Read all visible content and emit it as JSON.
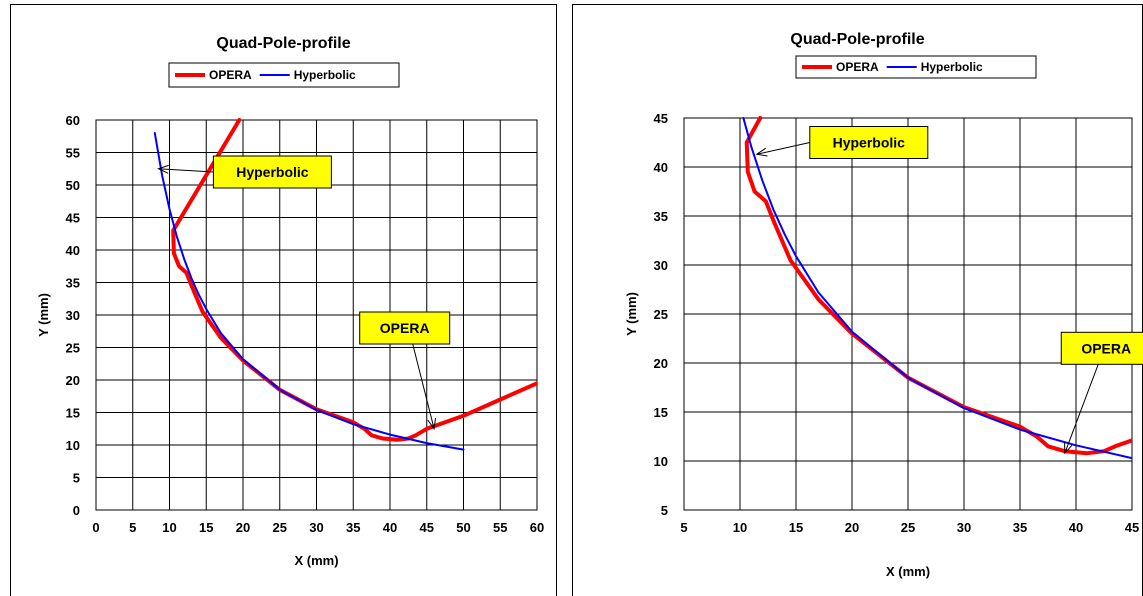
{
  "chart_data": [
    {
      "type": "line",
      "title": "Quad-Pole-profile",
      "xlabel": "X (mm)",
      "ylabel": "Y (mm)",
      "xlim": [
        0,
        60
      ],
      "ylim": [
        0,
        60
      ],
      "xticks": [
        0,
        5,
        10,
        15,
        20,
        25,
        30,
        35,
        40,
        45,
        50,
        55,
        60
      ],
      "yticks": [
        0,
        5,
        10,
        15,
        20,
        25,
        30,
        35,
        40,
        45,
        50,
        55,
        60
      ],
      "grid": true,
      "legend": "top-center",
      "series": [
        {
          "name": "OPERA",
          "color": "#ff0000",
          "x": [
            19.5,
            10.5,
            10.6,
            11.3,
            12.3,
            13.0,
            14.5,
            17,
            20,
            25,
            30,
            35,
            36.5,
            37.5,
            39,
            41,
            42.5,
            43.5,
            45,
            50,
            55,
            60
          ],
          "y": [
            60,
            43.0,
            39.5,
            37.5,
            36.5,
            34.5,
            30.5,
            26.5,
            23.0,
            18.5,
            15.5,
            13.5,
            12.5,
            11.5,
            11.0,
            10.8,
            11.0,
            11.5,
            12.5,
            14.5,
            17.0,
            19.5
          ]
        },
        {
          "name": "Hyperbolic",
          "color": "#0000ff",
          "x": [
            8,
            9,
            10,
            11,
            12,
            13,
            14,
            15,
            17,
            20,
            25,
            30,
            35,
            40,
            45,
            50
          ],
          "y": [
            58.0,
            51.5,
            46.3,
            42.1,
            38.6,
            35.6,
            33.1,
            30.9,
            27.2,
            23.2,
            18.5,
            15.4,
            13.2,
            11.6,
            10.3,
            9.3
          ]
        }
      ],
      "annotations": [
        {
          "text": "Hyperbolic",
          "target": [
            8.5,
            52.5
          ],
          "box": [
            24,
            52
          ]
        },
        {
          "text": "OPERA",
          "target": [
            46,
            12.5
          ],
          "box": [
            42,
            28
          ]
        }
      ]
    },
    {
      "type": "line",
      "title": "Quad-Pole-profile",
      "xlabel": "X (mm)",
      "ylabel": "Y (mm)",
      "xlim": [
        5,
        45
      ],
      "ylim": [
        5,
        45
      ],
      "xticks": [
        5,
        10,
        15,
        20,
        25,
        30,
        35,
        40,
        45
      ],
      "yticks": [
        5,
        10,
        15,
        20,
        25,
        30,
        35,
        40,
        45
      ],
      "grid": true,
      "legend": "top-center",
      "series": [
        {
          "name": "OPERA",
          "color": "#ff0000",
          "x": [
            11.8,
            10.6,
            10.7,
            11.3,
            12.3,
            13.0,
            14.5,
            17,
            20,
            25,
            30,
            35,
            36.5,
            37.5,
            39,
            41,
            42.5,
            43.5,
            45
          ],
          "y": [
            45,
            42.5,
            39.5,
            37.5,
            36.5,
            34.5,
            30.5,
            26.5,
            23.0,
            18.5,
            15.5,
            13.5,
            12.5,
            11.5,
            11.0,
            10.8,
            11.0,
            11.5,
            12.1
          ]
        },
        {
          "name": "Hyperbolic",
          "color": "#0000ff",
          "x": [
            10.3,
            11,
            12,
            13,
            14,
            15,
            17,
            20,
            25,
            30,
            35,
            40,
            45
          ],
          "y": [
            45.0,
            42.1,
            38.6,
            35.6,
            33.1,
            30.9,
            27.2,
            23.2,
            18.5,
            15.4,
            13.2,
            11.6,
            10.3
          ]
        }
      ],
      "annotations": [
        {
          "text": "Hyperbolic",
          "target": [
            11.5,
            41.3
          ],
          "box": [
            21.5,
            42.5
          ]
        },
        {
          "text": "OPERA",
          "target": [
            39,
            10.8
          ],
          "box": [
            42.7,
            21.5
          ]
        }
      ]
    }
  ]
}
